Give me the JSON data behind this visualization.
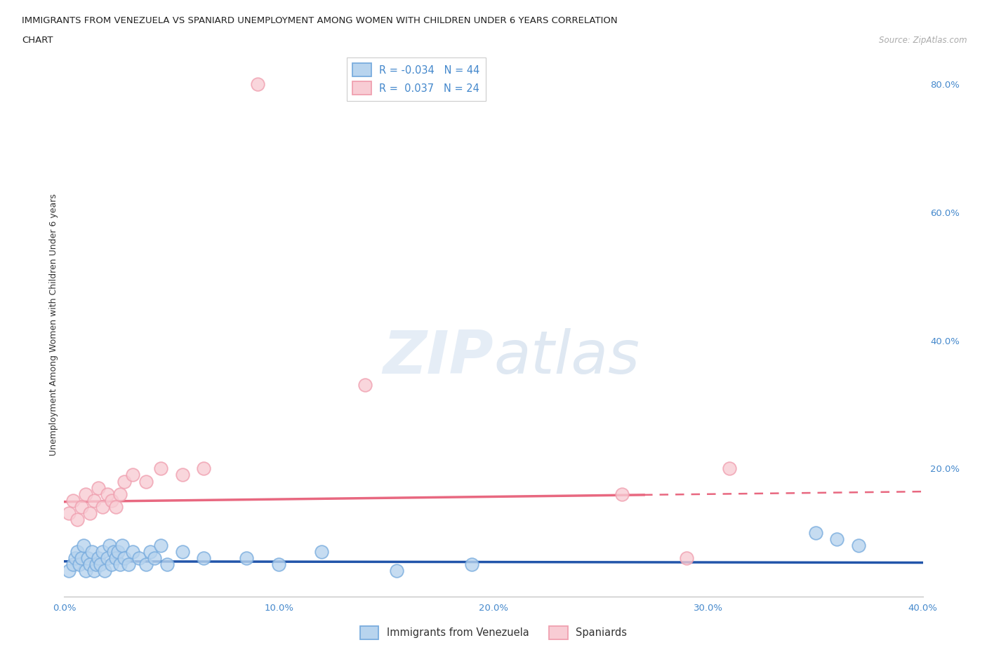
{
  "title_line1": "IMMIGRANTS FROM VENEZUELA VS SPANIARD UNEMPLOYMENT AMONG WOMEN WITH CHILDREN UNDER 6 YEARS CORRELATION",
  "title_line2": "CHART",
  "source": "Source: ZipAtlas.com",
  "ylabel": "Unemployment Among Women with Children Under 6 years",
  "xlim": [
    0.0,
    0.4
  ],
  "ylim": [
    0.0,
    0.85
  ],
  "xticks": [
    0.0,
    0.1,
    0.2,
    0.3,
    0.4
  ],
  "yticks_right": [
    0.2,
    0.4,
    0.6,
    0.8
  ],
  "background_color": "#ffffff",
  "grid_color": "#c8c8c8",
  "legend_R1": "R = -0.034",
  "legend_N1": "N = 44",
  "legend_R2": "R =  0.037",
  "legend_N2": "N = 24",
  "blue_color": "#7aadde",
  "blue_face": "#b8d4ee",
  "pink_color": "#f0a0b0",
  "pink_face": "#f8ccd4",
  "trend_blue": "#2255aa",
  "trend_pink": "#e86880",
  "watermark_color": "#d0dff0",
  "axis_label_color": "#4488cc",
  "blue_scatter_x": [
    0.002,
    0.004,
    0.005,
    0.006,
    0.007,
    0.008,
    0.009,
    0.01,
    0.011,
    0.012,
    0.013,
    0.014,
    0.015,
    0.016,
    0.017,
    0.018,
    0.019,
    0.02,
    0.021,
    0.022,
    0.023,
    0.024,
    0.025,
    0.026,
    0.027,
    0.028,
    0.03,
    0.032,
    0.035,
    0.038,
    0.04,
    0.042,
    0.045,
    0.048,
    0.055,
    0.065,
    0.085,
    0.1,
    0.12,
    0.155,
    0.19,
    0.35,
    0.36,
    0.37
  ],
  "blue_scatter_y": [
    0.04,
    0.05,
    0.06,
    0.07,
    0.05,
    0.06,
    0.08,
    0.04,
    0.06,
    0.05,
    0.07,
    0.04,
    0.05,
    0.06,
    0.05,
    0.07,
    0.04,
    0.06,
    0.08,
    0.05,
    0.07,
    0.06,
    0.07,
    0.05,
    0.08,
    0.06,
    0.05,
    0.07,
    0.06,
    0.05,
    0.07,
    0.06,
    0.08,
    0.05,
    0.07,
    0.06,
    0.06,
    0.05,
    0.07,
    0.04,
    0.05,
    0.1,
    0.09,
    0.08
  ],
  "pink_scatter_x": [
    0.002,
    0.004,
    0.006,
    0.008,
    0.01,
    0.012,
    0.014,
    0.016,
    0.018,
    0.02,
    0.022,
    0.024,
    0.026,
    0.028,
    0.032,
    0.038,
    0.045,
    0.055,
    0.065,
    0.09,
    0.14,
    0.26,
    0.29,
    0.31
  ],
  "pink_scatter_y": [
    0.13,
    0.15,
    0.12,
    0.14,
    0.16,
    0.13,
    0.15,
    0.17,
    0.14,
    0.16,
    0.15,
    0.14,
    0.16,
    0.18,
    0.19,
    0.18,
    0.2,
    0.19,
    0.2,
    0.8,
    0.33,
    0.16,
    0.06,
    0.2
  ],
  "pink_trend_solid_end": 0.27,
  "pink_trend_intercept": 0.148,
  "pink_trend_slope": 0.04,
  "blue_trend_intercept": 0.055,
  "blue_trend_slope": -0.005
}
